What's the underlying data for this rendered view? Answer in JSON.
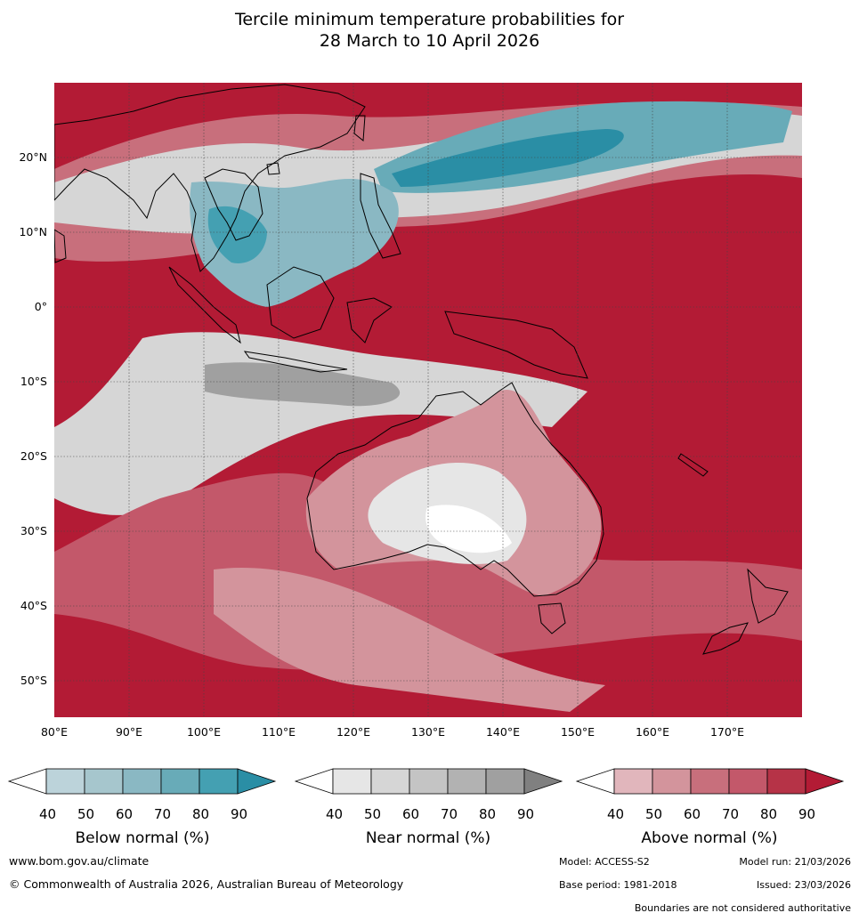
{
  "title": {
    "line1": "Tercile minimum temperature probabilities for",
    "line2": "28 March to 10 April 2026"
  },
  "map": {
    "latitude_labels": [
      "20°N",
      "10°N",
      "0°",
      "10°S",
      "20°S",
      "30°S",
      "40°S",
      "50°S"
    ],
    "longitude_labels": [
      "80°E",
      "90°E",
      "100°E",
      "110°E",
      "120°E",
      "130°E",
      "140°E",
      "150°E",
      "160°E",
      "170°E"
    ],
    "colors": {
      "ocean_above_90": "#b31b35",
      "land_outline": "#000000"
    }
  },
  "legends": [
    {
      "title": "Below normal (%)",
      "ticks": [
        "40",
        "50",
        "60",
        "70",
        "80",
        "90"
      ],
      "colors": [
        "#ffffff",
        "#bcd3da",
        "#a6c6cd",
        "#8ab8c3",
        "#68abb8",
        "#44a0b2",
        "#2a8ea5"
      ]
    },
    {
      "title": "Near normal (%)",
      "ticks": [
        "40",
        "50",
        "60",
        "70",
        "80",
        "90"
      ],
      "colors": [
        "#ffffff",
        "#e6e6e6",
        "#d6d6d6",
        "#c4c4c4",
        "#b2b2b2",
        "#a0a0a0",
        "#808080"
      ]
    },
    {
      "title": "Above normal (%)",
      "ticks": [
        "40",
        "50",
        "60",
        "70",
        "80",
        "90"
      ],
      "colors": [
        "#ffffff",
        "#e1b6bc",
        "#d3949c",
        "#c86f7c",
        "#c3586a",
        "#b63347",
        "#b31b35"
      ]
    }
  ],
  "footer": {
    "website": "www.bom.gov.au/climate",
    "copyright": "© Commonwealth of Australia 2026, Australian Bureau of Meteorology",
    "model": "Model: ACCESS-S2",
    "model_run": "Model run: 21/03/2026",
    "base_period": "Base period: 1981-2018",
    "issued": "Issued: 23/03/2026",
    "disclaimer": "Boundaries are not considered authoritative"
  }
}
